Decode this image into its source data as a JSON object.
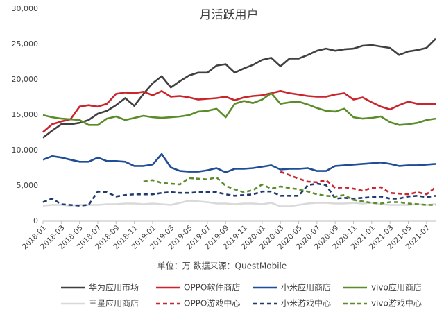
{
  "chart_data": {
    "type": "line",
    "title": "月活跃用户",
    "note": "单位：万   数据来源：QuestMobile",
    "categories": [
      "2018-01",
      null,
      "2018-03",
      null,
      "2018-05",
      null,
      "2018-07",
      null,
      "2018-09",
      null,
      "2018-11",
      null,
      "2019-01",
      null,
      "2019-03",
      null,
      "2019-05",
      null,
      "2019-07",
      null,
      "2019-09",
      null,
      "2019-11",
      null,
      "2020-01",
      null,
      "2020-03",
      null,
      "2020-05",
      null,
      "2020-07",
      null,
      "2020-09",
      null,
      "2020-11",
      null,
      "2021-01",
      null,
      "2021-03",
      null,
      "2021-05",
      null,
      "2021-07",
      null
    ],
    "ylim": [
      0,
      30000
    ],
    "yticks": [
      0,
      {
        "value": 5000,
        "label": "5,000"
      },
      {
        "value": 10000,
        "label": "10,000"
      },
      {
        "value": 15000,
        "label": "15,000"
      },
      {
        "value": 20000,
        "label": "20,000"
      },
      {
        "value": 25000,
        "label": "25,000"
      },
      {
        "value": 30000,
        "label": "30,000"
      }
    ],
    "grid": false,
    "legend": "bottom",
    "series": [
      {
        "name": "华为应用市场",
        "color": "#404040",
        "dashed": false,
        "values": [
          11800,
          12800,
          13700,
          13700,
          13900,
          14300,
          15200,
          15600,
          16400,
          17400,
          16300,
          18000,
          19500,
          20500,
          18900,
          19800,
          20600,
          21000,
          21000,
          22000,
          22200,
          21000,
          21600,
          22100,
          22800,
          23100,
          21900,
          23000,
          23000,
          23500,
          24100,
          24400,
          24100,
          24300,
          24400,
          24800,
          24900,
          24700,
          24500,
          23500,
          24000,
          24200,
          24500,
          25800
        ]
      },
      {
        "name": "OPPO软件商店",
        "color": "#c8252c",
        "dashed": false,
        "values": [
          12600,
          13700,
          14100,
          14400,
          16200,
          16400,
          16200,
          16600,
          18000,
          18200,
          18100,
          18300,
          17800,
          18400,
          17600,
          17700,
          17500,
          17200,
          17300,
          17400,
          17600,
          17100,
          17500,
          17700,
          17800,
          18100,
          18400,
          18100,
          17900,
          17700,
          17600,
          17600,
          17900,
          18100,
          17200,
          17500,
          16800,
          16200,
          15800,
          16400,
          16900,
          16600,
          16600,
          16600
        ]
      },
      {
        "name": "小米应用商店",
        "color": "#1f4e96",
        "dashed": false,
        "values": [
          8700,
          9200,
          9000,
          8700,
          8400,
          8400,
          9000,
          8500,
          8500,
          8400,
          7800,
          7800,
          8000,
          9500,
          7600,
          7100,
          7000,
          7000,
          7200,
          7500,
          6900,
          7400,
          7400,
          7500,
          7700,
          7900,
          7300,
          7400,
          7400,
          7500,
          7100,
          7100,
          7800,
          7900,
          8000,
          8100,
          8200,
          8300,
          8100,
          7800,
          7900,
          7900,
          8000,
          8100
        ]
      },
      {
        "name": "vivo应用商店",
        "color": "#5b8c2a",
        "dashed": false,
        "values": [
          15000,
          14700,
          14500,
          14400,
          14300,
          13600,
          13600,
          14500,
          14800,
          14300,
          14600,
          14900,
          14700,
          14600,
          14700,
          14800,
          15000,
          15500,
          15600,
          15900,
          14700,
          16600,
          17000,
          16700,
          17200,
          18100,
          16600,
          16800,
          16900,
          16500,
          16000,
          15600,
          15500,
          15900,
          14700,
          14500,
          14600,
          14800,
          14000,
          13600,
          13700,
          13900,
          14300,
          14500
        ]
      },
      {
        "name": "三星应用商店",
        "color": "#d9d9d9",
        "dashed": false,
        "values": [
          2200,
          2300,
          2300,
          2200,
          2300,
          2300,
          2300,
          2400,
          2400,
          2500,
          2500,
          2400,
          2500,
          2400,
          2300,
          2600,
          2900,
          2800,
          2700,
          2500,
          2500,
          2400,
          2500,
          2500,
          2400,
          2600,
          2100,
          2100,
          2300,
          2500,
          2600,
          2600,
          2500,
          2500,
          2600,
          2500,
          2600,
          2400,
          2300,
          2300,
          2300,
          2400,
          2300,
          2400
        ]
      },
      {
        "name": "OPPO游戏中心",
        "color": "#c8252c",
        "dashed": true,
        "values": [
          null,
          null,
          null,
          null,
          null,
          null,
          null,
          null,
          null,
          null,
          null,
          null,
          null,
          null,
          null,
          null,
          null,
          null,
          null,
          null,
          null,
          null,
          null,
          null,
          null,
          null,
          7000,
          6500,
          6000,
          5600,
          5500,
          5800,
          4700,
          4800,
          4600,
          4300,
          4700,
          4800,
          4000,
          3900,
          3800,
          4100,
          3800,
          4800
        ]
      },
      {
        "name": "小米游戏中心",
        "color": "#1f3a6e",
        "dashed": true,
        "values": [
          2700,
          3200,
          2400,
          2300,
          2200,
          2300,
          4200,
          4100,
          3500,
          3700,
          3800,
          3800,
          3800,
          4000,
          4100,
          4000,
          4000,
          4100,
          4100,
          4100,
          3800,
          3600,
          3700,
          3800,
          4200,
          4200,
          3600,
          3600,
          3600,
          5100,
          5300,
          5100,
          3200,
          3300,
          3200,
          3300,
          3400,
          3500,
          3200,
          3200,
          3500,
          3600,
          3400,
          3600
        ]
      },
      {
        "name": "vivo游戏中心",
        "color": "#5b8c2a",
        "dashed": true,
        "values": [
          null,
          null,
          null,
          null,
          null,
          null,
          null,
          null,
          null,
          null,
          null,
          5600,
          5800,
          5400,
          5300,
          5200,
          6100,
          6000,
          5900,
          6200,
          5000,
          4500,
          4100,
          4400,
          5200,
          4600,
          4900,
          4700,
          4500,
          4200,
          3800,
          3600,
          3500,
          3700,
          3000,
          2800,
          2600,
          2500,
          2700,
          2700,
          2500,
          2400,
          2300,
          2300
        ]
      }
    ]
  }
}
